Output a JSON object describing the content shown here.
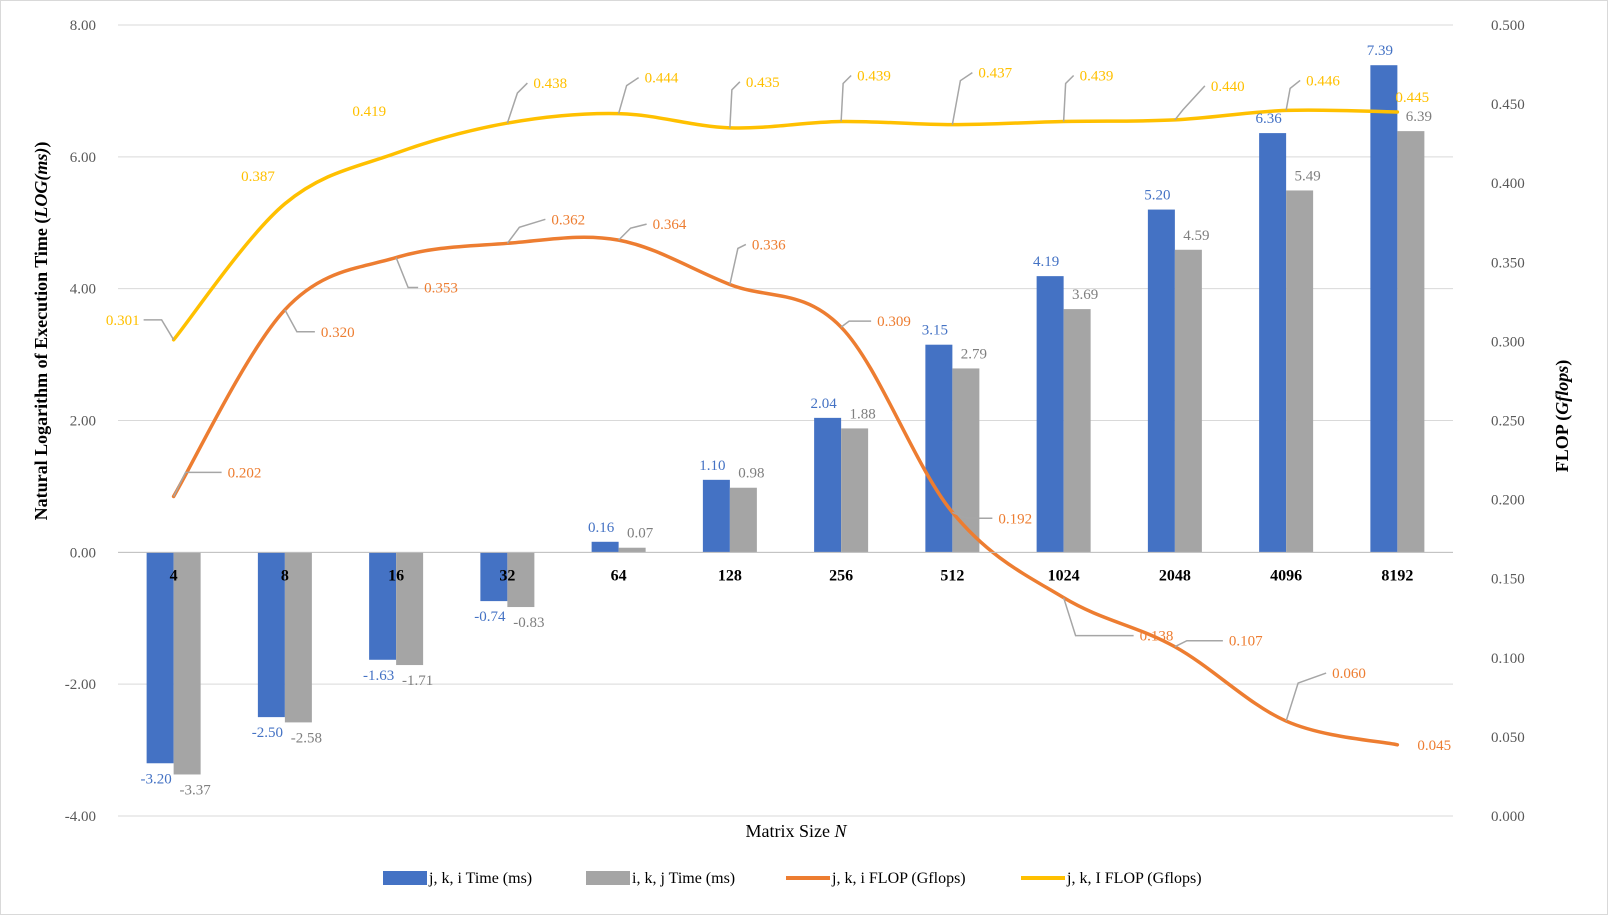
{
  "chart_data": {
    "type": "bar",
    "categories": [
      "4",
      "8",
      "16",
      "32",
      "64",
      "128",
      "256",
      "512",
      "1024",
      "2048",
      "4096",
      "8192"
    ],
    "xlabel": "Matrix Size",
    "xlabel_var": "N",
    "ylabel_left": "Natural Logarithm of Execution Time (",
    "ylabel_left_var": "LOG(ms)",
    "ylabel_left_end": ")",
    "ylabel_right": "FLOP (",
    "ylabel_right_var": "Gflops",
    "ylabel_right_end": ")",
    "ylim_left": [
      -4,
      8
    ],
    "ylim_right": [
      0,
      0.5
    ],
    "left_ticks": [
      "-4.00",
      "-2.00",
      "0.00",
      "2.00",
      "4.00",
      "6.00",
      "8.00"
    ],
    "right_ticks": [
      "0.000",
      "0.050",
      "0.100",
      "0.150",
      "0.200",
      "0.250",
      "0.300",
      "0.350",
      "0.400",
      "0.450",
      "0.500"
    ],
    "grid": true,
    "legend_position": "bottom",
    "bar_series": [
      {
        "name": "j, k, i Time (ms)",
        "color": "#4472c4",
        "values": [
          -3.2,
          -2.5,
          -1.63,
          -0.74,
          0.16,
          1.1,
          2.04,
          3.15,
          4.19,
          5.2,
          6.36,
          7.39
        ],
        "labels": [
          "-3.20",
          "-2.50",
          "-1.63",
          "-0.74",
          "0.16",
          "1.10",
          "2.04",
          "3.15",
          "4.19",
          "5.20",
          "6.36",
          "7.39"
        ]
      },
      {
        "name": "i, k, j Time (ms)",
        "color": "#a5a5a5",
        "values": [
          -3.37,
          -2.58,
          -1.71,
          -0.83,
          0.07,
          0.98,
          1.88,
          2.79,
          3.69,
          4.59,
          5.49,
          6.39
        ],
        "labels": [
          "-3.37",
          "-2.58",
          "-1.71",
          "-0.83",
          "0.07",
          "0.98",
          "1.88",
          "2.79",
          "3.69",
          "4.59",
          "5.49",
          "6.39"
        ]
      }
    ],
    "line_series": [
      {
        "name": "j, k, i FLOP (Gflops)",
        "color": "#ed7d31",
        "values": [
          0.202,
          0.32,
          0.353,
          0.362,
          0.364,
          0.336,
          0.309,
          0.192,
          0.138,
          0.107,
          0.06,
          0.045
        ],
        "labels": [
          "0.202",
          "0.320",
          "0.353",
          "0.362",
          "0.364",
          "0.336",
          "0.309",
          "0.192",
          "0.138",
          "0.107",
          "0.060",
          "0.045"
        ]
      },
      {
        "name": "j, k, I FLOP (Gflops)",
        "color": "#ffc000",
        "values": [
          0.301,
          0.387,
          0.419,
          0.438,
          0.444,
          0.435,
          0.439,
          0.437,
          0.439,
          0.44,
          0.446,
          0.445
        ],
        "labels": [
          "0.301",
          "0.387",
          "0.419",
          "0.438",
          "0.444",
          "0.435",
          "0.439",
          "0.437",
          "0.439",
          "0.440",
          "0.446",
          "0.445"
        ]
      }
    ]
  }
}
